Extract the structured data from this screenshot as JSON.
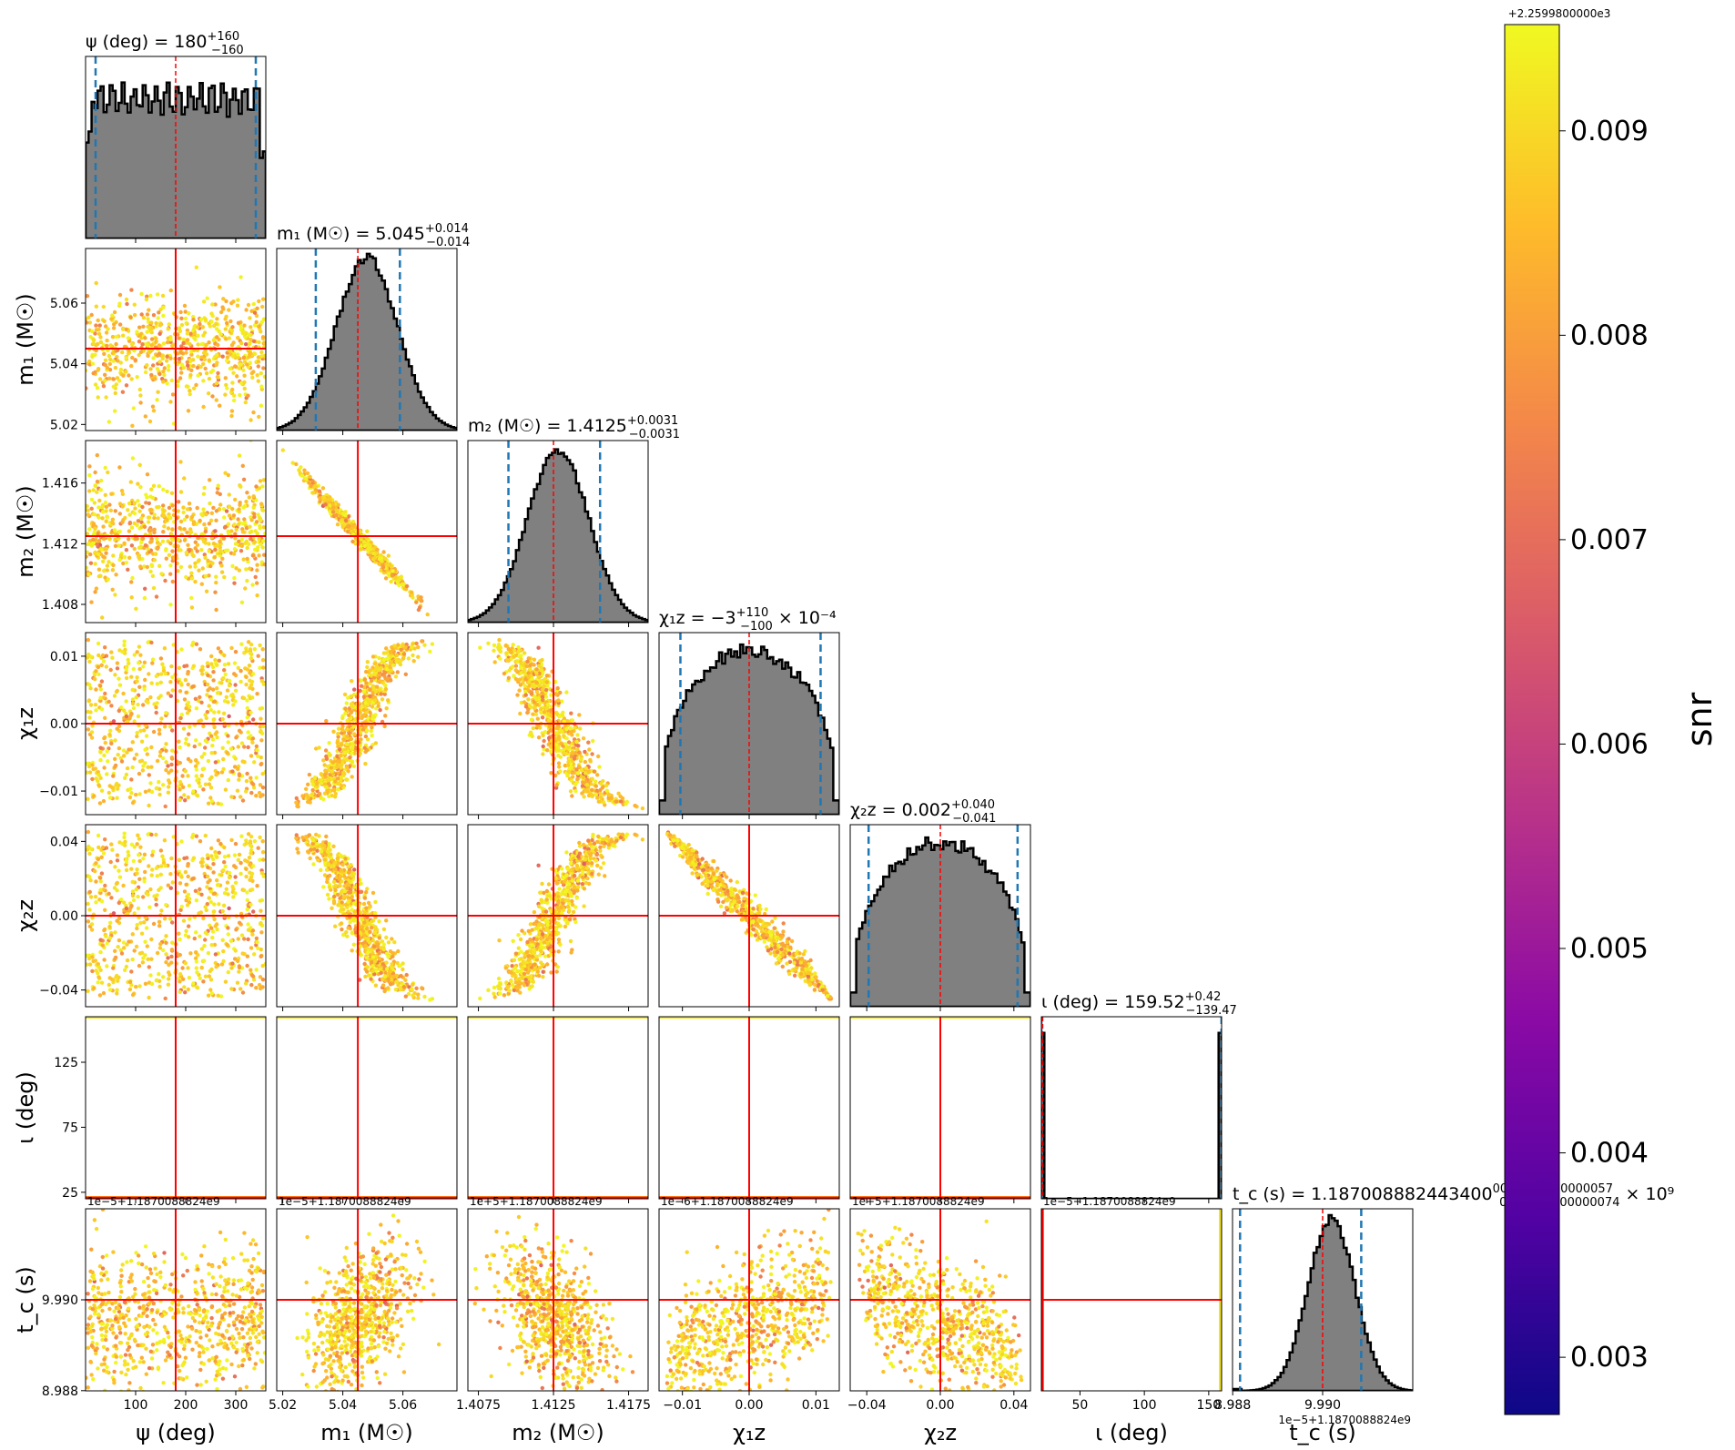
{
  "chart_data": {
    "type": "scatter",
    "subtype": "corner-plot",
    "colors": {
      "hist_fill": "#808080",
      "hist_edge": "#000000",
      "quantile_line": "#1f77b4",
      "injection_line": "#ff0000",
      "colormap": [
        "#0d0887",
        "#5302a3",
        "#8b0aa5",
        "#b83289",
        "#db5c68",
        "#f48849",
        "#febc2a",
        "#f0f921"
      ]
    },
    "parameters": [
      {
        "key": "psi",
        "title": "ψ (deg) = 180",
        "median": "180",
        "plus": "+160",
        "minus": "−160",
        "xlabel": "ψ (deg)",
        "ylabel": "",
        "range": [
          0,
          360
        ],
        "injection": 180,
        "q": [
          20,
          340
        ],
        "hist_shape": "flat",
        "xticks": [
          "100",
          "200",
          "300"
        ],
        "xtick_vals": [
          100,
          200,
          300
        ],
        "yticks": [],
        "ytick_vals": [],
        "offset": "1e−5+1.1870088824e9"
      },
      {
        "key": "m1",
        "title": "m₁ (M☉) = 5.045",
        "median": "5.045",
        "plus": "+0.014",
        "minus": "−0.014",
        "xlabel": "m₁ (M☉)",
        "ylabel": "m₁ (M☉)",
        "range": [
          5.018,
          5.078
        ],
        "injection": 5.045,
        "q": [
          5.031,
          5.059
        ],
        "hist_shape": "gauss",
        "xticks": [
          "5.02",
          "5.04",
          "5.06"
        ],
        "xtick_vals": [
          5.02,
          5.04,
          5.06
        ],
        "yticks": [
          "5.02",
          "5.04",
          "5.06"
        ],
        "ytick_vals": [
          5.02,
          5.04,
          5.06
        ],
        "offset": "1e−5+1.1870088824e9"
      },
      {
        "key": "m2",
        "title": "m₂ (M☉) = 1.4125",
        "median": "1.4125",
        "plus": "+0.0031",
        "minus": "−0.0031",
        "xlabel": "m₂ (M☉)",
        "ylabel": "m₂ (M☉)",
        "range": [
          1.4068,
          1.4188
        ],
        "injection": 1.4125,
        "q": [
          1.4095,
          1.4156
        ],
        "hist_shape": "gauss",
        "xticks": [
          "1.4075",
          "1.4125",
          "1.4175"
        ],
        "xtick_vals": [
          1.4075,
          1.4125,
          1.4175
        ],
        "yticks": [
          "1.408",
          "1.412",
          "1.416"
        ],
        "ytick_vals": [
          1.408,
          1.412,
          1.416
        ],
        "offset": "1e+5+1.1870088824e9"
      },
      {
        "key": "chi1z",
        "title": "χ₁z = −3",
        "median": "−3",
        "plus": "+110",
        "minus": "−100",
        "exp": "× 10⁻⁴",
        "xlabel": "χ₁z",
        "ylabel": "χ₁z",
        "range": [
          -0.0135,
          0.0135
        ],
        "injection": 0.0,
        "q": [
          -0.0103,
          0.0107
        ],
        "hist_shape": "dome",
        "xticks": [
          "−0.01",
          "0.00",
          "0.01"
        ],
        "xtick_vals": [
          -0.01,
          0,
          0.01
        ],
        "yticks": [
          "−0.01",
          "0.00",
          "0.01"
        ],
        "ytick_vals": [
          -0.01,
          0,
          0.01
        ],
        "offset": "1e−6+1.1870088824e9"
      },
      {
        "key": "chi2z",
        "title": "χ₂z = 0.002",
        "median": "0.002",
        "plus": "+0.040",
        "minus": "−0.041",
        "xlabel": "χ₂z",
        "ylabel": "χ₂z",
        "range": [
          -0.049,
          0.049
        ],
        "injection": 0.0,
        "q": [
          -0.039,
          0.042
        ],
        "hist_shape": "dome",
        "xticks": [
          "−0.04",
          "0.00",
          "0.04"
        ],
        "xtick_vals": [
          -0.04,
          0,
          0.04
        ],
        "yticks": [
          "−0.04",
          "0.00",
          "0.04"
        ],
        "ytick_vals": [
          -0.04,
          0,
          0.04
        ],
        "offset": "1e+5+1.1870088824e9"
      },
      {
        "key": "iota",
        "title": "ι (deg) = 159.52",
        "median": "159.52",
        "plus": "+0.42",
        "minus": "−139.47",
        "xlabel": "ι (deg)",
        "ylabel": "ι (deg)",
        "range": [
          20,
          160
        ],
        "injection": 21,
        "q": [
          20.05,
          159.94
        ],
        "hist_shape": "edges",
        "xticks": [
          "50",
          "100",
          "150"
        ],
        "xtick_vals": [
          50,
          100,
          150
        ],
        "yticks": [
          "25",
          "75",
          "125"
        ],
        "ytick_vals": [
          25,
          75,
          125
        ],
        "offset": "1e−5+1.1870088824e9"
      },
      {
        "key": "tc",
        "title": "t_c (s) = 1.187008882443400",
        "median": "1.187008882443400",
        "plus": "0000000000000057",
        "minus": "0000000000000074",
        "exp": "× 10⁹",
        "xlabel": "t_c (s)",
        "ylabel": "t_c (s)",
        "range": [
          8.986,
          10.994
        ],
        "injection": 9.99,
        "q": [
          9.07,
          10.42
        ],
        "hist_shape": "tc",
        "xticks": [
          "8.988",
          "9.990"
        ],
        "xtick_vals": [
          8.988,
          9.99
        ],
        "yticks": [
          "8.988",
          "9.990"
        ],
        "ytick_vals": [
          8.988,
          9.99
        ],
        "offset": "1e−5+1.1870088824e9"
      }
    ],
    "correlations": {
      "m2|m1": -0.99,
      "chi1z|m1": 0.92,
      "chi1z|m2": -0.92,
      "chi2z|m1": -0.92,
      "chi2z|m2": 0.92,
      "chi2z|chi1z": -0.985,
      "tc|m1": 0.45,
      "tc|m2": -0.45,
      "tc|chi1z": 0.55,
      "tc|chi2z": -0.55
    },
    "colorbar": {
      "label": "snr",
      "offset": "+2.2599800000e3",
      "range": [
        0.00272,
        0.00952
      ],
      "ticks": [
        "0.003",
        "0.004",
        "0.005",
        "0.006",
        "0.007",
        "0.008",
        "0.009"
      ],
      "tick_vals": [
        0.003,
        0.004,
        0.005,
        0.006,
        0.007,
        0.008,
        0.009
      ]
    }
  }
}
